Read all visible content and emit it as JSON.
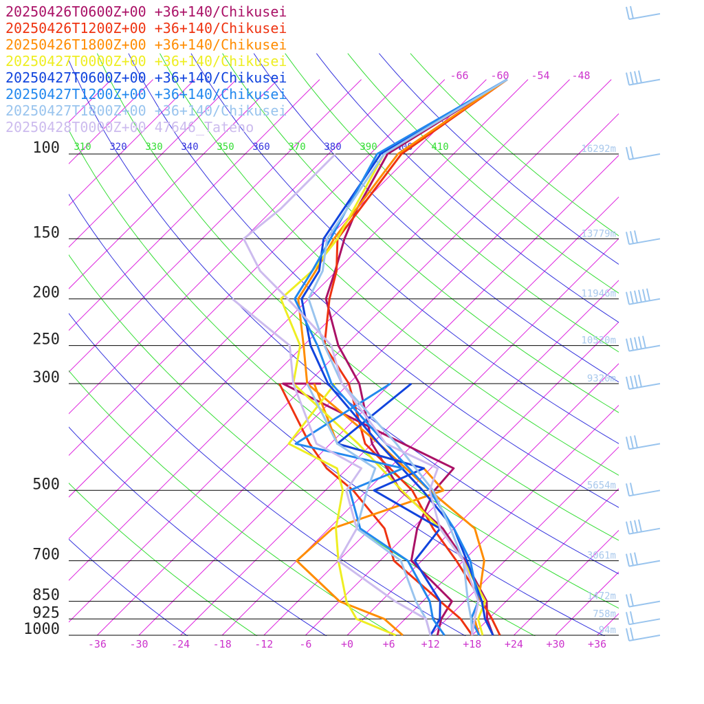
{
  "colors": {
    "isotherm": "#dd22dd",
    "dry_adiabat_blue": "#3333dd",
    "dry_adiabat_green": "#33dd33",
    "isobar": "#000000",
    "wind_barb": "#99c4ee",
    "height_label": "#a8c8ec",
    "temp_tick": "#cc33cc"
  },
  "chart_data": {
    "type": "line",
    "title": "",
    "chart_kind": "skew-T log-P sounding",
    "xlabel": "",
    "ylabel": "",
    "y_scale": "log",
    "y_inverted": true,
    "ylim": [
      1000,
      70
    ],
    "temperature_ticks": [
      -36,
      -30,
      -24,
      -18,
      -12,
      -6,
      0,
      6,
      12,
      18,
      24,
      30,
      36
    ],
    "temperature_tick_labels": [
      "-36",
      "-30",
      "-24",
      "-18",
      "-12",
      "-6",
      "+0",
      "+6",
      "+12",
      "+18",
      "+24",
      "+30",
      "+36"
    ],
    "upper_temperature_labels": [
      "-66",
      "-60",
      "-54",
      "-48"
    ],
    "pressure_levels": [
      100,
      150,
      200,
      250,
      300,
      500,
      700,
      850,
      925,
      1000
    ],
    "potential_temperature_labels": [
      "310",
      "320",
      "330",
      "340",
      "350",
      "360",
      "370",
      "380",
      "390",
      "400",
      "410"
    ],
    "height_labels": [
      {
        "p": 100,
        "label": "16292m"
      },
      {
        "p": 150,
        "label": "13779m"
      },
      {
        "p": 200,
        "label": "11946m"
      },
      {
        "p": 250,
        "label": "10520m"
      },
      {
        "p": 300,
        "label": "9320m"
      },
      {
        "p": 500,
        "label": "5654m"
      },
      {
        "p": 700,
        "label": "3061m"
      },
      {
        "p": 850,
        "label": "1472m"
      },
      {
        "p": 925,
        "label": "758m"
      },
      {
        "p": 1000,
        "label": "94m"
      }
    ],
    "grid": true,
    "legend_position": "top-left",
    "series": [
      {
        "name": "20250426T0600Z+00 +36+140/Chikusei",
        "color": "#aa1166",
        "points": [
          [
            1000,
            21
          ],
          [
            925,
            17.8
          ],
          [
            850,
            15.2
          ],
          [
            700,
            6.2
          ],
          [
            600,
            -1.6
          ],
          [
            500,
            -13.2
          ],
          [
            400,
            -24
          ],
          [
            300,
            -34.5
          ],
          [
            250,
            -43
          ],
          [
            200,
            -51.5
          ],
          [
            175,
            -54.2
          ],
          [
            150,
            -57.5
          ],
          [
            130,
            -60
          ],
          [
            100,
            -63.5
          ]
        ],
        "dewpoints": [
          [
            1000,
            13
          ],
          [
            925,
            11.2
          ],
          [
            850,
            10.2
          ],
          [
            700,
            -1.5
          ],
          [
            600,
            -5.3
          ],
          [
            500,
            -8.3
          ],
          [
            450,
            -8.7
          ],
          [
            400,
            -19.5
          ],
          [
            300,
            -45.5
          ],
          [
            300,
            -40
          ]
        ]
      },
      {
        "name": "20250426T1200Z+00 +36+140/Chikusei",
        "color": "#ee3311",
        "points": [
          [
            1000,
            22
          ],
          [
            925,
            18.5
          ],
          [
            850,
            14.5
          ],
          [
            700,
            5
          ],
          [
            600,
            -3
          ],
          [
            500,
            -11.5
          ],
          [
            400,
            -25
          ],
          [
            300,
            -36
          ],
          [
            250,
            -45
          ],
          [
            200,
            -51
          ],
          [
            175,
            -54
          ],
          [
            150,
            -58.5
          ],
          [
            100,
            -61.5
          ]
        ],
        "dewpoints": [
          [
            1000,
            18
          ],
          [
            925,
            14
          ],
          [
            850,
            8.5
          ],
          [
            700,
            -4
          ],
          [
            600,
            -10
          ],
          [
            500,
            -20
          ],
          [
            450,
            -27
          ],
          [
            400,
            -33
          ],
          [
            300,
            -46
          ]
        ]
      },
      {
        "name": "20250426T1800Z+00 +36+140/Chikusei",
        "color": "#ff8c00",
        "points": [
          [
            1000,
            19
          ],
          [
            925,
            16
          ],
          [
            850,
            14
          ],
          [
            700,
            9
          ],
          [
            600,
            3
          ],
          [
            500,
            -9
          ],
          [
            400,
            -23
          ],
          [
            300,
            -42
          ],
          [
            250,
            -48
          ],
          [
            200,
            -55.5
          ],
          [
            175,
            -57
          ],
          [
            150,
            -59
          ],
          [
            100,
            -62
          ]
        ],
        "dewpoints": [
          [
            1000,
            8
          ],
          [
            925,
            3
          ],
          [
            850,
            -6
          ],
          [
            700,
            -18
          ],
          [
            600,
            -17.5
          ],
          [
            500,
            -7
          ],
          [
            450,
            -13
          ],
          [
            400,
            -29
          ],
          [
            300,
            -41
          ]
        ]
      },
      {
        "name": "20250427T0000Z+00 +36+140/Chikusei",
        "color": "#eeee22",
        "points": [
          [
            1000,
            19.5
          ],
          [
            925,
            16.5
          ],
          [
            850,
            15
          ],
          [
            700,
            6
          ],
          [
            600,
            -2
          ],
          [
            500,
            -13
          ],
          [
            400,
            -26
          ],
          [
            300,
            -44
          ],
          [
            250,
            -48.5
          ],
          [
            200,
            -58
          ],
          [
            175,
            -57.5
          ],
          [
            150,
            -58.5
          ],
          [
            100,
            -64
          ]
        ],
        "dewpoints": [
          [
            1000,
            7
          ],
          [
            925,
            -1
          ],
          [
            850,
            -5
          ],
          [
            700,
            -12
          ],
          [
            600,
            -17
          ],
          [
            500,
            -21.5
          ],
          [
            450,
            -25.5
          ],
          [
            400,
            -36
          ],
          [
            300,
            -38
          ]
        ]
      },
      {
        "name": "20250427T0600Z+00 +36+140/Chikusei",
        "color": "#1144dd",
        "points": [
          [
            1000,
            21
          ],
          [
            925,
            17.5
          ],
          [
            850,
            14.5
          ],
          [
            700,
            6.5
          ],
          [
            600,
            0
          ],
          [
            500,
            -10
          ],
          [
            400,
            -23
          ],
          [
            300,
            -39
          ],
          [
            250,
            -47
          ],
          [
            200,
            -55
          ],
          [
            175,
            -56.5
          ],
          [
            150,
            -60.5
          ],
          [
            100,
            -64.5
          ]
        ],
        "dewpoints": [
          [
            1000,
            12
          ],
          [
            925,
            11
          ],
          [
            850,
            8.5
          ],
          [
            700,
            -1
          ],
          [
            600,
            -2
          ],
          [
            500,
            -17
          ],
          [
            450,
            -13
          ],
          [
            400,
            -29
          ],
          [
            300,
            -27
          ]
        ]
      },
      {
        "name": "20250427T1200Z+00 +36+140/Chikusei",
        "color": "#2288ee",
        "points": [
          [
            1000,
            19
          ],
          [
            925,
            15.5
          ],
          [
            850,
            14
          ],
          [
            700,
            7
          ],
          [
            600,
            0
          ],
          [
            500,
            -9
          ],
          [
            400,
            -22
          ],
          [
            300,
            -38.5
          ],
          [
            250,
            -46
          ],
          [
            200,
            -56
          ],
          [
            175,
            -57.5
          ],
          [
            150,
            -59.5
          ],
          [
            100,
            -65
          ]
        ],
        "dewpoints": [
          [
            1000,
            14
          ],
          [
            925,
            10
          ],
          [
            850,
            7
          ],
          [
            700,
            -2
          ],
          [
            600,
            -13.5
          ],
          [
            500,
            -20.5
          ],
          [
            450,
            -16
          ],
          [
            400,
            -35
          ],
          [
            300,
            -30
          ]
        ]
      },
      {
        "name": "20250427T1800Z+00 +36+140/Chikusei",
        "color": "#99c4ee",
        "points": [
          [
            1000,
            18
          ],
          [
            925,
            15.5
          ],
          [
            850,
            12.5
          ],
          [
            700,
            6
          ],
          [
            600,
            -0.5
          ],
          [
            500,
            -8.5
          ],
          [
            400,
            -20.5
          ],
          [
            300,
            -37
          ],
          [
            250,
            -45
          ],
          [
            200,
            -54
          ],
          [
            175,
            -56
          ],
          [
            150,
            -60
          ],
          [
            100,
            -64
          ]
        ],
        "dewpoints": [
          [
            1000,
            12
          ],
          [
            925,
            9
          ],
          [
            850,
            5
          ],
          [
            700,
            -3
          ],
          [
            600,
            -14
          ],
          [
            500,
            -18
          ],
          [
            450,
            -20
          ],
          [
            400,
            -29
          ],
          [
            300,
            -42
          ]
        ]
      },
      {
        "name": "20250428T0000Z+00 47646_Tateno",
        "color": "#ccbbee",
        "points": [
          [
            1000,
            18
          ],
          [
            925,
            16
          ],
          [
            850,
            14
          ],
          [
            700,
            6
          ],
          [
            600,
            -2
          ],
          [
            500,
            -9
          ],
          [
            450,
            -11
          ],
          [
            400,
            -22
          ],
          [
            300,
            -37
          ],
          [
            250,
            -44
          ],
          [
            200,
            -57
          ],
          [
            175,
            -65
          ],
          [
            150,
            -72
          ],
          [
            130,
            -71
          ],
          [
            100,
            -71
          ]
        ],
        "dewpoints": [
          [
            1000,
            12
          ],
          [
            925,
            9
          ],
          [
            850,
            2
          ],
          [
            700,
            -12
          ],
          [
            600,
            -14
          ],
          [
            500,
            -21
          ],
          [
            450,
            -22
          ],
          [
            400,
            -32
          ],
          [
            300,
            -44
          ],
          [
            250,
            -50
          ],
          [
            200,
            -65
          ]
        ]
      }
    ],
    "wind_barbs": [
      {
        "p": 1000,
        "speed_kt": 15
      },
      {
        "p": 925,
        "speed_kt": 15
      },
      {
        "p": 850,
        "speed_kt": 15
      },
      {
        "p": 700,
        "speed_kt": 25
      },
      {
        "p": 600,
        "speed_kt": 35
      },
      {
        "p": 500,
        "speed_kt": 15
      },
      {
        "p": 400,
        "speed_kt": 25
      },
      {
        "p": 300,
        "speed_kt": 35
      },
      {
        "p": 250,
        "speed_kt": 45
      },
      {
        "p": 200,
        "speed_kt": 55
      },
      {
        "p": 150,
        "speed_kt": 25
      },
      {
        "p": 100,
        "speed_kt": 15
      },
      {
        "p": 70,
        "speed_kt": 35
      },
      {
        "p": 50,
        "speed_kt": 15
      }
    ]
  }
}
